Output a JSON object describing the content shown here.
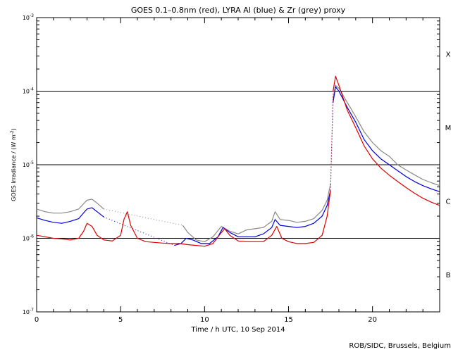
{
  "chart_data": {
    "type": "line",
    "title": "GOES 0.1–0.8nm (red), LYRA Al (blue) & Zr (grey) proxy",
    "xlabel": "Time / h UTC, 10 Sep 2014",
    "ylabel": "GOES Irradiance / (W m",
    "ylabel_sup": "-2",
    "ylabel_close": ")",
    "xlim": [
      0,
      24
    ],
    "ylim": [
      1e-07,
      0.001
    ],
    "yscale": "log",
    "x_ticks": [
      0,
      5,
      10,
      15,
      20
    ],
    "x_tick_labels": [
      "0",
      "5",
      "10",
      "15",
      "20"
    ],
    "y_ticks": [
      {
        "value": 1e-07,
        "base": "10",
        "exp": "-7"
      },
      {
        "value": 1e-06,
        "base": "10",
        "exp": "-6"
      },
      {
        "value": 1e-05,
        "base": "10",
        "exp": "-5"
      },
      {
        "value": 0.0001,
        "base": "10",
        "exp": "-4"
      },
      {
        "value": 0.001,
        "base": "10",
        "exp": "-3"
      }
    ],
    "flare_class_lines": [
      1e-06,
      1e-05,
      0.0001
    ],
    "flare_classes": [
      {
        "label": "X",
        "value": 0.00032
      },
      {
        "label": "M",
        "value": 3.2e-05
      },
      {
        "label": "C",
        "value": 3.2e-06
      },
      {
        "label": "B",
        "value": 3.2e-07
      }
    ],
    "series": [
      {
        "name": "Zr proxy (grey)",
        "color": "#888888",
        "segments": [
          [
            [
              0,
              2.5e-06
            ],
            [
              0.5,
              2.3e-06
            ],
            [
              1,
              2.2e-06
            ],
            [
              1.5,
              2.2e-06
            ],
            [
              2,
              2.3e-06
            ],
            [
              2.5,
              2.5e-06
            ],
            [
              3,
              3.3e-06
            ],
            [
              3.3,
              3.4e-06
            ],
            [
              3.6,
              3e-06
            ],
            [
              4,
              2.5e-06
            ]
          ],
          [
            [
              8.7,
              1.5e-06
            ],
            [
              9,
              1.2e-06
            ],
            [
              9.5,
              9.5e-07
            ],
            [
              10,
              9e-07
            ],
            [
              10.5,
              1.05e-06
            ],
            [
              11,
              1.45e-06
            ],
            [
              11.5,
              1.25e-06
            ],
            [
              12,
              1.15e-06
            ],
            [
              12.5,
              1.3e-06
            ],
            [
              13,
              1.35e-06
            ],
            [
              13.5,
              1.4e-06
            ],
            [
              14,
              1.7e-06
            ],
            [
              14.2,
              2.3e-06
            ],
            [
              14.5,
              1.8e-06
            ],
            [
              15,
              1.75e-06
            ],
            [
              15.5,
              1.65e-06
            ],
            [
              16,
              1.7e-06
            ],
            [
              16.5,
              1.85e-06
            ],
            [
              17,
              2.4e-06
            ],
            [
              17.3,
              3.3e-06
            ],
            [
              17.5,
              5.5e-06
            ]
          ],
          [
            [
              17.65,
              8e-05
            ],
            [
              17.8,
              0.00012
            ],
            [
              18,
              0.00011
            ],
            [
              18.5,
              7e-05
            ],
            [
              19,
              4.5e-05
            ],
            [
              19.5,
              2.8e-05
            ],
            [
              20,
              2e-05
            ],
            [
              20.5,
              1.55e-05
            ],
            [
              21,
              1.3e-05
            ],
            [
              21.5,
              1e-05
            ],
            [
              22,
              8.5e-06
            ],
            [
              22.5,
              7.3e-06
            ],
            [
              23,
              6.3e-06
            ],
            [
              23.5,
              5.7e-06
            ],
            [
              24,
              5.2e-06
            ]
          ]
        ]
      },
      {
        "name": "LYRA Al (blue)",
        "color": "#0000dd",
        "segments": [
          [
            [
              0,
              1.9e-06
            ],
            [
              0.5,
              1.75e-06
            ],
            [
              1,
              1.65e-06
            ],
            [
              1.5,
              1.6e-06
            ],
            [
              2,
              1.7e-06
            ],
            [
              2.5,
              1.85e-06
            ],
            [
              3,
              2.5e-06
            ],
            [
              3.3,
              2.6e-06
            ],
            [
              3.6,
              2.3e-06
            ],
            [
              4,
              1.95e-06
            ]
          ],
          [
            [
              8.2,
              8e-07
            ],
            [
              8.6,
              8.5e-07
            ],
            [
              8.9,
              1e-06
            ],
            [
              9.3,
              9.5e-07
            ],
            [
              9.8,
              8.5e-07
            ],
            [
              10.3,
              8.5e-07
            ],
            [
              10.8,
              1.05e-06
            ],
            [
              11.1,
              1.4e-06
            ],
            [
              11.5,
              1.2e-06
            ],
            [
              12,
              1.05e-06
            ],
            [
              12.5,
              1.05e-06
            ],
            [
              13,
              1.05e-06
            ],
            [
              13.5,
              1.15e-06
            ],
            [
              14,
              1.4e-06
            ],
            [
              14.2,
              1.8e-06
            ],
            [
              14.5,
              1.5e-06
            ],
            [
              15,
              1.45e-06
            ],
            [
              15.5,
              1.4e-06
            ],
            [
              16,
              1.45e-06
            ],
            [
              16.5,
              1.6e-06
            ],
            [
              17,
              2e-06
            ],
            [
              17.3,
              2.8e-06
            ],
            [
              17.5,
              4.5e-06
            ]
          ],
          [
            [
              17.65,
              7e-05
            ],
            [
              17.8,
              0.000115
            ],
            [
              18,
              0.0001
            ],
            [
              18.5,
              6e-05
            ],
            [
              19,
              3.8e-05
            ],
            [
              19.5,
              2.2e-05
            ],
            [
              20,
              1.55e-05
            ],
            [
              20.5,
              1.2e-05
            ],
            [
              21,
              1e-05
            ],
            [
              21.5,
              8.3e-06
            ],
            [
              22,
              6.9e-06
            ],
            [
              22.5,
              5.9e-06
            ],
            [
              23,
              5.2e-06
            ],
            [
              23.5,
              4.7e-06
            ],
            [
              24,
              4.3e-06
            ]
          ]
        ]
      },
      {
        "name": "GOES 0.1–0.8nm (red)",
        "color": "#dd0000",
        "segments": [
          [
            [
              0,
              1.1e-06
            ],
            [
              0.5,
              1.05e-06
            ],
            [
              1,
              1e-06
            ],
            [
              1.5,
              9.8e-07
            ],
            [
              2,
              9.5e-07
            ],
            [
              2.5,
              1e-06
            ],
            [
              2.8,
              1.25e-06
            ],
            [
              3,
              1.6e-06
            ],
            [
              3.3,
              1.45e-06
            ],
            [
              3.6,
              1.1e-06
            ],
            [
              4,
              9.5e-07
            ],
            [
              4.5,
              9.2e-07
            ],
            [
              5,
              1.1e-06
            ],
            [
              5.2,
              1.8e-06
            ],
            [
              5.4,
              2.3e-06
            ],
            [
              5.6,
              1.5e-06
            ],
            [
              6,
              1e-06
            ],
            [
              6.5,
              9e-07
            ],
            [
              7,
              8.8e-07
            ],
            [
              7.5,
              8.6e-07
            ],
            [
              8,
              8.5e-07
            ],
            [
              8.5,
              8.5e-07
            ],
            [
              9,
              8.2e-07
            ],
            [
              9.5,
              8e-07
            ],
            [
              10,
              7.8e-07
            ],
            [
              10.5,
              8.5e-07
            ],
            [
              11,
              1.2e-06
            ],
            [
              11.2,
              1.35e-06
            ],
            [
              11.5,
              1.1e-06
            ],
            [
              12,
              9.2e-07
            ],
            [
              12.5,
              9e-07
            ],
            [
              13,
              9e-07
            ],
            [
              13.5,
              9e-07
            ],
            [
              14,
              1.1e-06
            ],
            [
              14.3,
              1.45e-06
            ],
            [
              14.6,
              1e-06
            ],
            [
              15,
              9e-07
            ],
            [
              15.5,
              8.5e-07
            ],
            [
              16,
              8.5e-07
            ],
            [
              16.5,
              8.8e-07
            ],
            [
              17,
              1.1e-06
            ],
            [
              17.3,
              2e-06
            ],
            [
              17.5,
              4.5e-06
            ]
          ],
          [
            [
              17.65,
              0.0001
            ],
            [
              17.8,
              0.00016
            ],
            [
              18,
              0.00012
            ],
            [
              18.5,
              5.5e-05
            ],
            [
              19,
              3.2e-05
            ],
            [
              19.5,
              1.8e-05
            ],
            [
              20,
              1.2e-05
            ],
            [
              20.5,
              9e-06
            ],
            [
              21,
              7.2e-06
            ],
            [
              21.5,
              5.9e-06
            ],
            [
              22,
              4.9e-06
            ],
            [
              22.5,
              4.1e-06
            ],
            [
              23,
              3.5e-06
            ],
            [
              23.5,
              3.1e-06
            ],
            [
              24,
              2.8e-06
            ]
          ]
        ]
      }
    ]
  },
  "credit": "ROB/SIDC, Brussels, Belgium"
}
